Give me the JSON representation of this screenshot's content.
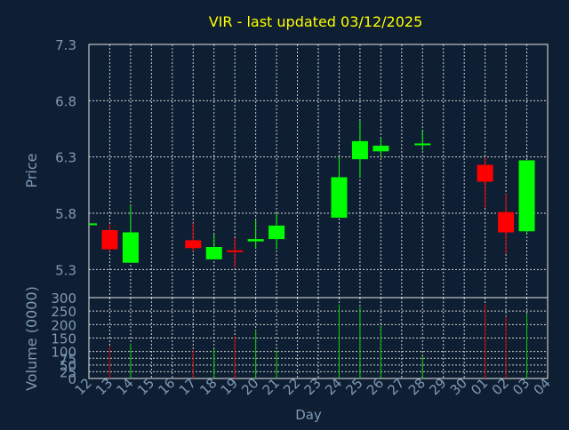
{
  "title": "VIR - last updated 03/12/2025",
  "colors": {
    "background": "#0f1f33",
    "title": "#ffff00",
    "axis_text": "#7f9ab5",
    "frame": "#e6e6e6",
    "grid": "#d0d0d0",
    "up": "#00ff00",
    "down": "#ff0000",
    "up_volume": "#00cc00",
    "down_volume": "#cc0000"
  },
  "chart_data": [
    {
      "type": "candlestick",
      "title": "VIR - last updated 03/12/2025",
      "ylabel": "Price",
      "ylim": [
        5.05,
        7.3
      ],
      "yticks": [
        "5.3",
        "5.8",
        "6.3",
        "6.8",
        "7.3"
      ],
      "grid": true,
      "x_labels": [
        "12",
        "13",
        "14",
        "15",
        "16",
        "17",
        "18",
        "19",
        "20",
        "21",
        "22",
        "23",
        "24",
        "25",
        "26",
        "27",
        "28",
        "29",
        "30",
        "01",
        "02",
        "03",
        "04"
      ],
      "candles": [
        {
          "x": "12",
          "open": 5.71,
          "high": 5.71,
          "low": 5.71,
          "close": 5.71
        },
        {
          "x": "13",
          "open": 5.65,
          "high": 5.7,
          "low": 5.46,
          "close": 5.48
        },
        {
          "x": "14",
          "open": 5.36,
          "high": 5.87,
          "low": 5.36,
          "close": 5.63
        },
        {
          "x": "17",
          "open": 5.56,
          "high": 5.71,
          "low": 5.46,
          "close": 5.49
        },
        {
          "x": "18",
          "open": 5.39,
          "high": 5.61,
          "low": 5.39,
          "close": 5.5
        },
        {
          "x": "19",
          "open": 5.47,
          "high": 5.58,
          "low": 5.32,
          "close": 5.46
        },
        {
          "x": "20",
          "open": 5.55,
          "high": 5.74,
          "low": 5.49,
          "close": 5.57
        },
        {
          "x": "21",
          "open": 5.57,
          "high": 5.8,
          "low": 5.48,
          "close": 5.69
        },
        {
          "x": "24",
          "open": 5.76,
          "high": 6.3,
          "low": 5.76,
          "close": 6.12
        },
        {
          "x": "25",
          "open": 6.28,
          "high": 6.62,
          "low": 6.12,
          "close": 6.44
        },
        {
          "x": "26",
          "open": 6.35,
          "high": 6.47,
          "low": 6.3,
          "close": 6.4
        },
        {
          "x": "28",
          "open": 6.41,
          "high": 6.53,
          "low": 6.36,
          "close": 6.42
        },
        {
          "x": "01",
          "open": 6.23,
          "high": 6.29,
          "low": 5.85,
          "close": 6.08
        },
        {
          "x": "02",
          "open": 5.81,
          "high": 5.97,
          "low": 5.44,
          "close": 5.63
        },
        {
          "x": "03",
          "open": 5.64,
          "high": 6.27,
          "low": 5.62,
          "close": 6.27
        }
      ]
    },
    {
      "type": "bar",
      "ylabel": "Volume (0000)",
      "xlabel": "Day",
      "ylim": [
        0,
        300
      ],
      "yticks": [
        "0",
        "25",
        "50",
        "75",
        "100",
        "150",
        "200",
        "250",
        "300"
      ],
      "grid": true,
      "x_labels": [
        "12",
        "13",
        "14",
        "15",
        "16",
        "17",
        "18",
        "19",
        "20",
        "21",
        "22",
        "23",
        "24",
        "25",
        "26",
        "27",
        "28",
        "29",
        "30",
        "01",
        "02",
        "03",
        "04"
      ],
      "bars": [
        {
          "x": "13",
          "value": 120,
          "direction": "down"
        },
        {
          "x": "14",
          "value": 130,
          "direction": "up"
        },
        {
          "x": "17",
          "value": 105,
          "direction": "down"
        },
        {
          "x": "18",
          "value": 110,
          "direction": "up"
        },
        {
          "x": "19",
          "value": 160,
          "direction": "down"
        },
        {
          "x": "20",
          "value": 180,
          "direction": "up"
        },
        {
          "x": "21",
          "value": 105,
          "direction": "up"
        },
        {
          "x": "24",
          "value": 275,
          "direction": "up"
        },
        {
          "x": "25",
          "value": 265,
          "direction": "up"
        },
        {
          "x": "26",
          "value": 195,
          "direction": "up"
        },
        {
          "x": "28",
          "value": 85,
          "direction": "up"
        },
        {
          "x": "01",
          "value": 275,
          "direction": "down"
        },
        {
          "x": "02",
          "value": 230,
          "direction": "down"
        },
        {
          "x": "03",
          "value": 240,
          "direction": "up"
        }
      ]
    }
  ]
}
